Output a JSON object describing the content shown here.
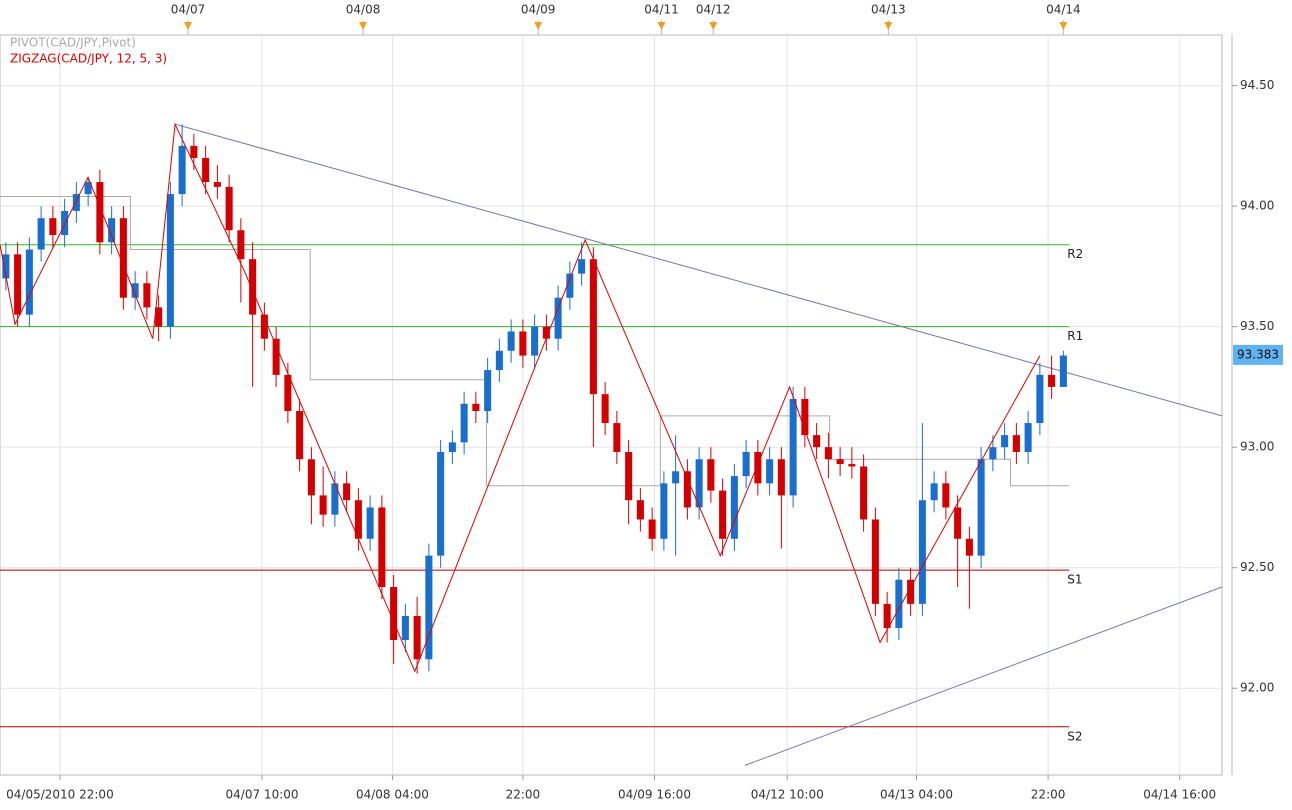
{
  "chart_data": {
    "type": "candlestick",
    "up_color": "#1a6fce",
    "down_color": "#d40000",
    "xlim": [
      0,
      104
    ],
    "ylim": [
      91.64,
      94.71
    ],
    "yticks": [
      {
        "value": 92,
        "label": "92.00"
      },
      {
        "value": 92.5,
        "label": "92.50"
      },
      {
        "value": 93,
        "label": "93.00"
      },
      {
        "value": 93.5,
        "label": "93.50"
      },
      {
        "value": 94,
        "label": "94.00"
      },
      {
        "value": 94.5,
        "label": "94.50"
      }
    ],
    "xticks": [
      {
        "value": 5.1,
        "label": "04/05/2010 22:00"
      },
      {
        "value": 22.3,
        "label": "04/07 10:00"
      },
      {
        "value": 33.4,
        "label": "04/08 04:00"
      },
      {
        "value": 44.5,
        "label": "22:00"
      },
      {
        "value": 55.7,
        "label": "04/09 16:00"
      },
      {
        "value": 67.0,
        "label": "04/12 10:00"
      },
      {
        "value": 78.0,
        "label": "04/13 04:00"
      },
      {
        "value": 89.2,
        "label": "22:00"
      },
      {
        "value": 100.4,
        "label": "04/14 16:00"
      }
    ],
    "session_markers": [
      {
        "value": 16.0,
        "label": "04/07"
      },
      {
        "value": 30.9,
        "label": "04/08"
      },
      {
        "value": 45.8,
        "label": "04/09"
      },
      {
        "value": 56.3,
        "label": "04/11"
      },
      {
        "value": 60.7,
        "label": "04/12"
      },
      {
        "value": 75.6,
        "label": "04/13"
      },
      {
        "value": 90.5,
        "label": "04/14"
      }
    ],
    "grid": true,
    "open": [
      93.7,
      93.8,
      93.55,
      93.82,
      93.95,
      93.88,
      93.98,
      94.05,
      94.1,
      93.85,
      93.95,
      93.62,
      93.68,
      93.58,
      93.5,
      94.05,
      94.25,
      94.2,
      94.1,
      94.08,
      93.9,
      93.78,
      93.55,
      93.45,
      93.3,
      93.15,
      92.95,
      92.8,
      92.72,
      92.85,
      92.78,
      92.62,
      92.75,
      92.42,
      92.2,
      92.3,
      92.12,
      92.55,
      92.98,
      93.02,
      93.18,
      93.15,
      93.32,
      93.4,
      93.48,
      93.38,
      93.5,
      93.45,
      93.62,
      93.72,
      93.78,
      93.22,
      93.1,
      92.98,
      92.78,
      92.7,
      92.62,
      92.85,
      92.9,
      92.75,
      92.95,
      92.82,
      92.62,
      92.88,
      92.98,
      92.85,
      92.95,
      92.8,
      93.2,
      93.05,
      93.0,
      92.95,
      92.93,
      92.92,
      92.7,
      92.35,
      92.25,
      92.45,
      92.35,
      92.78,
      92.85,
      92.75,
      92.62,
      92.55,
      92.95,
      93.0,
      93.05,
      92.98,
      93.1,
      93.3,
      93.25
    ],
    "high": [
      93.85,
      93.85,
      93.87,
      94.0,
      94.0,
      94.03,
      94.1,
      94.12,
      94.15,
      94.0,
      94.0,
      93.73,
      93.73,
      93.63,
      94.1,
      94.34,
      94.3,
      94.25,
      94.17,
      94.13,
      93.95,
      93.85,
      93.6,
      93.5,
      93.35,
      93.2,
      93.0,
      92.92,
      92.9,
      92.9,
      92.83,
      92.8,
      92.8,
      92.47,
      92.35,
      92.38,
      92.6,
      93.03,
      93.07,
      93.23,
      93.23,
      93.37,
      93.45,
      93.53,
      93.53,
      93.55,
      93.55,
      93.67,
      93.77,
      93.85,
      93.83,
      93.27,
      93.15,
      93.03,
      92.83,
      92.75,
      92.9,
      93.05,
      92.95,
      93.0,
      93.0,
      92.87,
      92.93,
      93.03,
      93.03,
      93.0,
      93.0,
      93.25,
      93.25,
      93.1,
      93.06,
      93.0,
      93.0,
      92.97,
      92.75,
      92.4,
      92.5,
      92.5,
      93.1,
      92.9,
      92.9,
      92.8,
      92.67,
      93.0,
      93.05,
      93.1,
      93.1,
      93.15,
      93.35,
      93.38,
      93.4
    ],
    "low": [
      93.65,
      93.5,
      93.5,
      93.77,
      93.83,
      93.83,
      93.93,
      94.0,
      93.8,
      93.8,
      93.57,
      93.57,
      93.53,
      93.44,
      93.45,
      94.0,
      94.15,
      94.05,
      94.03,
      93.85,
      93.6,
      93.25,
      93.4,
      93.25,
      93.1,
      92.9,
      92.68,
      92.67,
      92.67,
      92.73,
      92.57,
      92.57,
      92.37,
      92.1,
      92.15,
      92.06,
      92.07,
      92.5,
      92.93,
      92.97,
      93.1,
      93.1,
      93.27,
      93.35,
      93.33,
      93.33,
      93.4,
      93.4,
      93.57,
      93.67,
      93.0,
      93.05,
      92.93,
      92.68,
      92.65,
      92.57,
      92.57,
      92.55,
      92.7,
      92.7,
      92.77,
      92.55,
      92.57,
      92.83,
      92.8,
      92.8,
      92.58,
      92.75,
      93.0,
      92.95,
      92.87,
      92.88,
      92.87,
      92.65,
      92.3,
      92.19,
      92.2,
      92.3,
      92.3,
      92.73,
      92.7,
      92.42,
      92.33,
      92.5,
      92.9,
      92.95,
      92.93,
      92.93,
      93.05,
      93.2,
      93.27
    ],
    "close": [
      93.8,
      93.55,
      93.82,
      93.95,
      93.88,
      93.98,
      94.05,
      94.1,
      93.85,
      93.95,
      93.62,
      93.68,
      93.58,
      93.5,
      94.05,
      94.25,
      94.2,
      94.1,
      94.08,
      93.9,
      93.78,
      93.55,
      93.45,
      93.3,
      93.15,
      92.95,
      92.8,
      92.72,
      92.85,
      92.78,
      92.62,
      92.75,
      92.42,
      92.2,
      92.3,
      92.12,
      92.55,
      92.98,
      93.02,
      93.18,
      93.15,
      93.32,
      93.4,
      93.48,
      93.38,
      93.5,
      93.45,
      93.62,
      93.72,
      93.78,
      93.22,
      93.1,
      92.98,
      92.78,
      92.7,
      92.62,
      92.85,
      92.9,
      92.75,
      92.95,
      92.82,
      92.62,
      92.88,
      92.98,
      92.85,
      92.95,
      92.8,
      93.2,
      93.05,
      93.0,
      92.95,
      92.93,
      92.92,
      92.7,
      92.35,
      92.25,
      92.45,
      92.35,
      92.78,
      92.85,
      92.75,
      92.62,
      92.55,
      92.95,
      93.0,
      93.05,
      92.98,
      93.1,
      93.3,
      93.25,
      93.38
    ],
    "indicators": [
      {
        "name": "PIVOT(CAD/JPY,Pivot)",
        "color": "#aaaaaa",
        "x": [
          0,
          11.1,
          11.1,
          26.4,
          26.4,
          41.4,
          41.4,
          56.2,
          56.2,
          70.6,
          70.6,
          86,
          86,
          91
        ],
        "values": [
          94.04,
          94.04,
          93.82,
          93.82,
          93.28,
          93.28,
          92.84,
          92.84,
          93.13,
          93.13,
          92.95,
          92.95,
          92.84,
          92.84
        ]
      },
      {
        "name": "ZIGZAG(CAD/JPY, 12, 5, 3)",
        "color": "#e00000",
        "x": [
          0,
          1.28,
          7.49,
          13.0,
          14.9,
          20.8,
          35.3,
          49.8,
          61.3,
          67.2,
          74.9,
          88.5
        ],
        "values": [
          93.84,
          93.51,
          94.12,
          93.45,
          94.34,
          93.73,
          92.07,
          93.86,
          92.55,
          93.25,
          92.19,
          93.38
        ]
      }
    ],
    "levels": [
      {
        "name": "R2",
        "value": 93.84,
        "color": "#2db82d"
      },
      {
        "name": "R1",
        "value": 93.5,
        "color": "#2db82d"
      },
      {
        "name": "S1",
        "value": 92.49,
        "color": "#b00000"
      },
      {
        "name": "S2",
        "value": 91.84,
        "color": "#b00000"
      }
    ],
    "trendlines": [
      {
        "color": "#7777aa",
        "x": [
          14.9,
          104
        ],
        "values": [
          94.34,
          93.13
        ]
      },
      {
        "color": "#7777aa",
        "x": [
          63.4,
          104
        ],
        "values": [
          91.68,
          92.42
        ]
      }
    ],
    "last_price": 93.383
  }
}
